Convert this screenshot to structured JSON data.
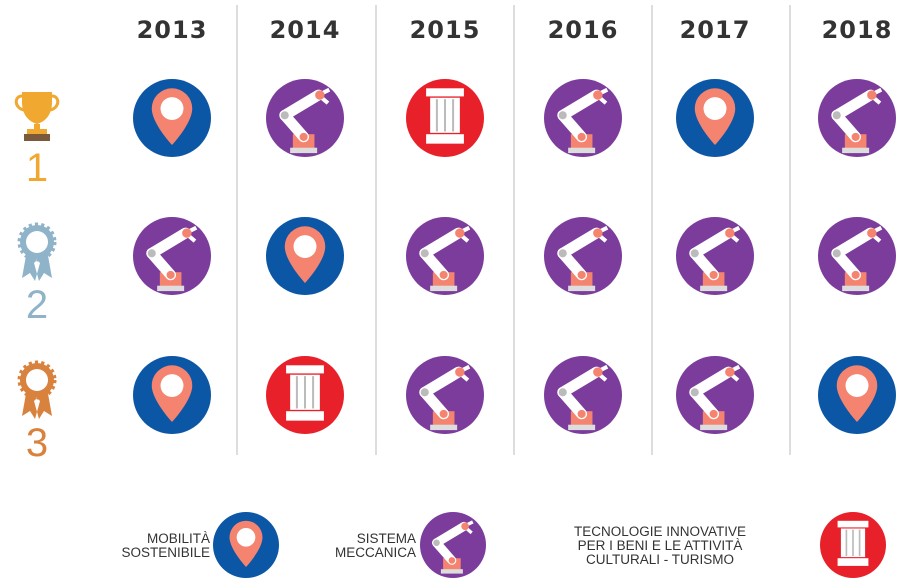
{
  "years": [
    "2013",
    "2014",
    "2015",
    "2016",
    "2017",
    "2018"
  ],
  "ranks": [
    "1",
    "2",
    "3"
  ],
  "grid": [
    [
      0,
      1,
      2,
      1,
      0,
      1
    ],
    [
      1,
      0,
      1,
      1,
      1,
      1
    ],
    [
      0,
      2,
      1,
      1,
      1,
      0
    ]
  ],
  "legend": [
    {
      "lines": [
        "MOBILITÀ",
        "SOSTENIBILE"
      ],
      "color": "#0b56a5"
    },
    {
      "lines": [
        "SISTEMA",
        "MECCANICA"
      ],
      "color": "#7b3c9c"
    },
    {
      "lines": [
        "TECNOLOGIE INNOVATIVE",
        "PER I BENI E LE ATTIVITÀ",
        "CULTURALI - TURISMO"
      ],
      "color": "#e8202a"
    }
  ]
}
